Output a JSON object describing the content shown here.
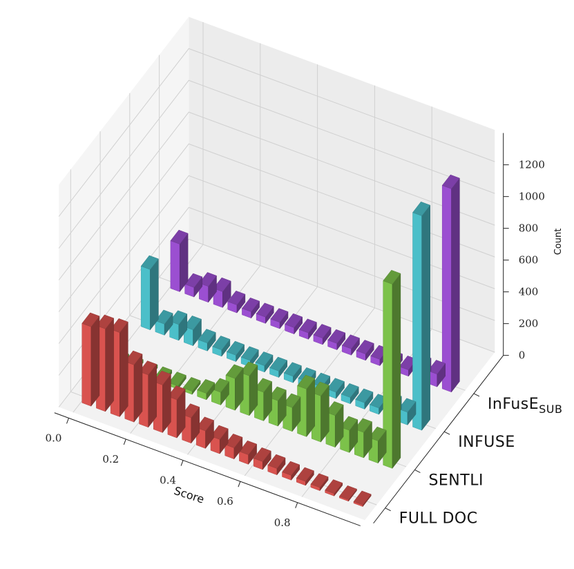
{
  "chart_data": {
    "type": "bar3d",
    "xlabel": "Score",
    "zlabel": "Count",
    "x_ticks": [
      "0.0",
      "0.2",
      "0.4",
      "0.6",
      "0.8"
    ],
    "z_ticks": [
      "0",
      "200",
      "400",
      "600",
      "800",
      "1000",
      "1200"
    ],
    "zlim": [
      0,
      1400
    ],
    "x": [
      0.0,
      0.05,
      0.1,
      0.15,
      0.2,
      0.25,
      0.3,
      0.35,
      0.4,
      0.45,
      0.5,
      0.55,
      0.6,
      0.65,
      0.7,
      0.75,
      0.8,
      0.85,
      0.9,
      0.95
    ],
    "series": [
      {
        "name": "FULL DOC",
        "color": "#d9534f",
        "values": [
          500,
          520,
          530,
          360,
          330,
          300,
          240,
          160,
          110,
          90,
          70,
          60,
          50,
          40,
          30,
          25,
          20,
          15,
          10,
          10
        ]
      },
      {
        "name": "SENTLI",
        "color": "#7cc24a",
        "values": [
          20,
          20,
          20,
          20,
          20,
          20,
          40,
          80,
          200,
          250,
          180,
          160,
          150,
          300,
          290,
          200,
          140,
          160,
          140,
          1160
        ]
      },
      {
        "name": "INFUSE",
        "color": "#4bbfc9",
        "values": [
          380,
          70,
          100,
          100,
          50,
          40,
          40,
          40,
          40,
          40,
          40,
          40,
          40,
          40,
          40,
          40,
          40,
          80,
          80,
          1350
        ]
      },
      {
        "name": "INFUSE_SUB",
        "label_main": "InFusE",
        "label_sub": "SUB",
        "color": "#9b4fd1",
        "values": [
          300,
          60,
          100,
          100,
          50,
          40,
          40,
          40,
          40,
          40,
          40,
          40,
          40,
          40,
          40,
          40,
          40,
          80,
          80,
          1280
        ]
      }
    ],
    "series_axis_labels": [
      "FULL DOC",
      "SENTLI",
      "INFUSE",
      "INFUSE_SUB"
    ]
  }
}
